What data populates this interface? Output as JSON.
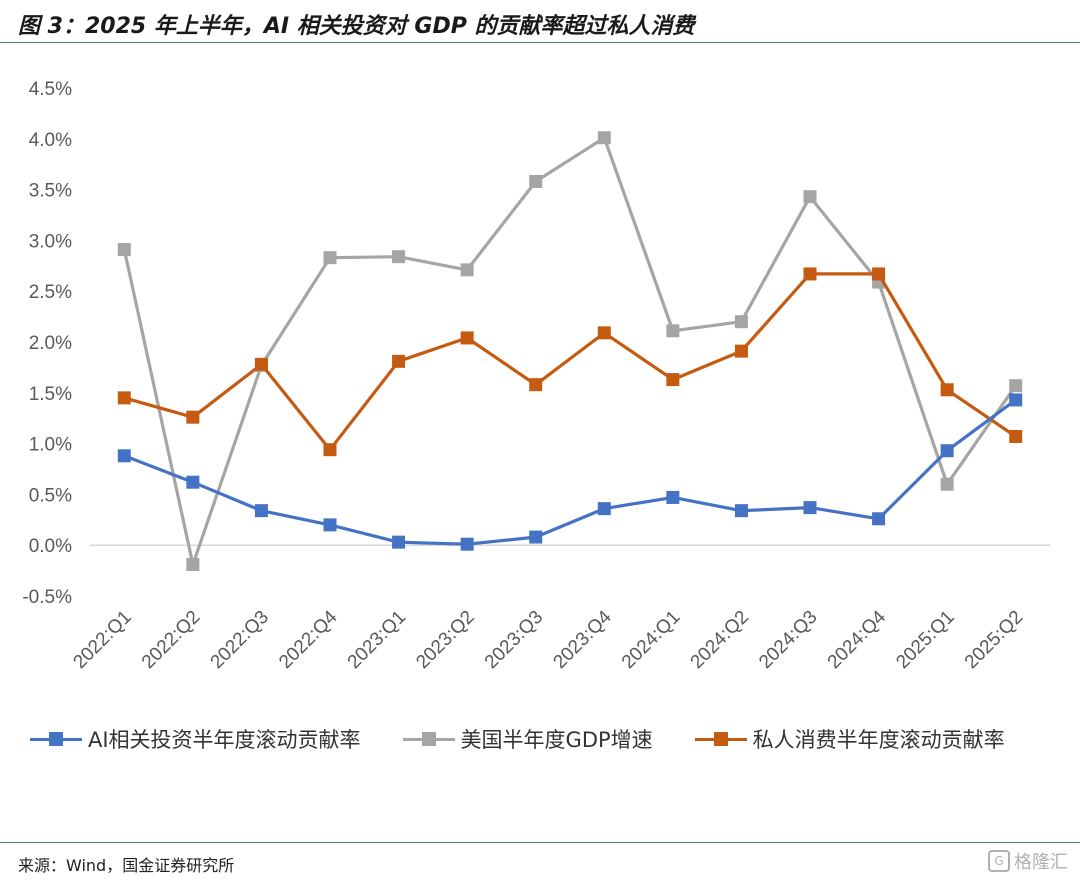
{
  "figure": {
    "title": "图 3：2025 年上半年，AI 相关投资对 GDP 的贡献率超过私人消费",
    "source": "来源：Wind，国金证券研究所",
    "watermark": "格隆汇"
  },
  "chart_data": {
    "type": "line",
    "categories": [
      "2022:Q1",
      "2022:Q2",
      "2022:Q3",
      "2022:Q4",
      "2023:Q1",
      "2023:Q2",
      "2023:Q3",
      "2023:Q4",
      "2024:Q1",
      "2024:Q2",
      "2024:Q3",
      "2024:Q4",
      "2025:Q1",
      "2025:Q2"
    ],
    "series": [
      {
        "name": "AI相关投资半年度滚动贡献率",
        "color": "#4472C4",
        "values": [
          0.88,
          0.62,
          0.34,
          0.2,
          0.03,
          0.01,
          0.08,
          0.36,
          0.47,
          0.34,
          0.37,
          0.26,
          0.93,
          1.43
        ]
      },
      {
        "name": "美国半年度GDP增速",
        "color": "#A5A5A5",
        "values": [
          2.91,
          -0.19,
          1.77,
          2.83,
          2.84,
          2.71,
          3.58,
          4.01,
          2.11,
          2.2,
          3.43,
          2.59,
          0.6,
          1.57
        ]
      },
      {
        "name": "私人消费半年度滚动贡献率",
        "color": "#C55A11",
        "values": [
          1.45,
          1.26,
          1.78,
          0.94,
          1.81,
          2.04,
          1.58,
          2.09,
          1.63,
          1.91,
          2.67,
          2.67,
          1.53,
          1.07
        ]
      }
    ],
    "yticks": [
      "-0.5%",
      "0.0%",
      "0.5%",
      "1.0%",
      "1.5%",
      "2.0%",
      "2.5%",
      "3.0%",
      "3.5%",
      "4.0%",
      "4.5%"
    ],
    "ylim": [
      -0.5,
      4.5
    ],
    "grid": false,
    "legend_position": "bottom"
  }
}
